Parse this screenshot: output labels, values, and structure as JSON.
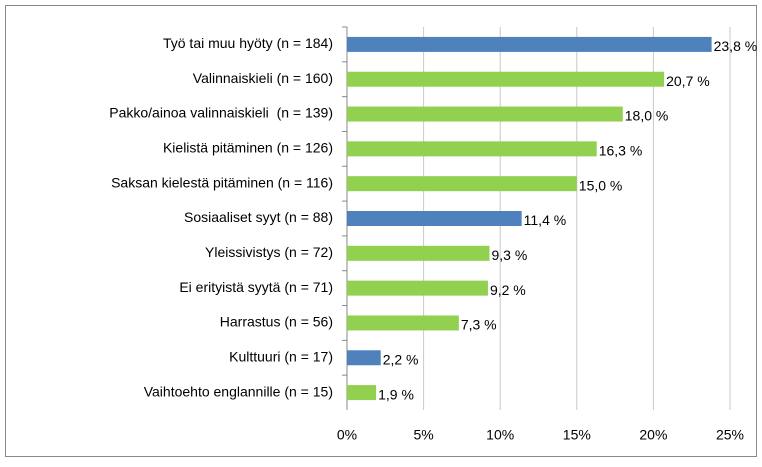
{
  "chart_data": {
    "type": "hbar",
    "categories": [
      "Työ tai muu hyöty (n = 184)",
      "Valinnaiskieli (n = 160)",
      "Pakko/ainoa valinnaiskieli  (n = 139)",
      "Kielistä pitäminen (n = 126)",
      "Saksan kielestä pitäminen (n = 116)",
      "Sosiaaliset syyt (n = 88)",
      "Yleissivistys (n = 72)",
      "Ei erityistä syytä (n = 71)",
      "Harrastus (n = 56)",
      "Kulttuuri (n = 17)",
      "Vaihtoehto englannille (n = 15)"
    ],
    "values": [
      23.8,
      20.7,
      18.0,
      16.3,
      15.0,
      11.4,
      9.3,
      9.2,
      7.3,
      2.2,
      1.9
    ],
    "value_labels": [
      "23,8 %",
      "20,7 %",
      "18,0 %",
      "16,3 %",
      "15,0 %",
      "11,4 %",
      "9,3 %",
      "9,2 %",
      "7,3 %",
      "2,2 %",
      "1,9 %"
    ],
    "colors": [
      "#4f81bd",
      "#92d050",
      "#92d050",
      "#92d050",
      "#92d050",
      "#4f81bd",
      "#92d050",
      "#92d050",
      "#92d050",
      "#4f81bd",
      "#92d050"
    ],
    "xlim": [
      0,
      25
    ],
    "xticks": [
      {
        "value": 0,
        "label": "0%"
      },
      {
        "value": 5,
        "label": "5%"
      },
      {
        "value": 10,
        "label": "10%"
      },
      {
        "value": 15,
        "label": "15%"
      },
      {
        "value": 20,
        "label": "20%"
      },
      {
        "value": 25,
        "label": "25%"
      }
    ],
    "grid": true
  }
}
